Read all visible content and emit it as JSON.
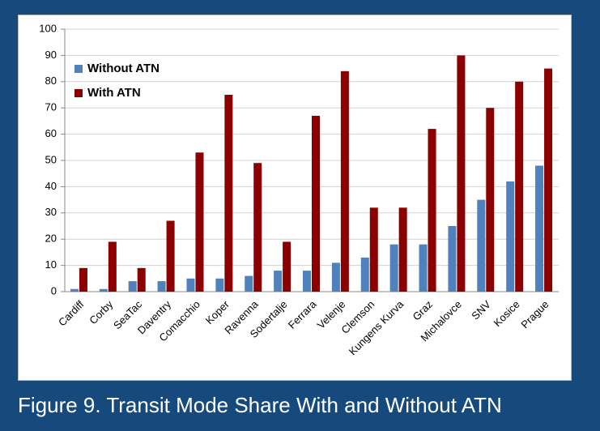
{
  "chart_data": {
    "type": "bar",
    "caption": "Figure 9. Transit Mode Share With and Without ATN",
    "categories": [
      "Cardiff",
      "Corby",
      "SeaTac",
      "Daventry",
      "Comacchio",
      "Koper",
      "Ravenna",
      "Sodertalje",
      "Ferrara",
      "Velenje",
      "Clemson",
      "Kungens Kurva",
      "Graz",
      "Michalovce",
      "SNV",
      "Kosice",
      "Prague"
    ],
    "series": [
      {
        "name": "Without ATN",
        "color": "#4f81bd",
        "values": [
          1,
          1,
          4,
          4,
          5,
          5,
          6,
          8,
          8,
          11,
          13,
          18,
          18,
          25,
          35,
          42,
          48
        ]
      },
      {
        "name": "With ATN",
        "color": "#8b0000",
        "values": [
          9,
          19,
          9,
          27,
          53,
          75,
          49,
          19,
          67,
          84,
          32,
          32,
          62,
          90,
          70,
          80,
          85
        ]
      }
    ],
    "ylim": [
      0,
      100
    ],
    "yticks": [
      0,
      10,
      20,
      30,
      40,
      50,
      60,
      70,
      80,
      90,
      100
    ],
    "grid": true,
    "legend": "top-left"
  }
}
